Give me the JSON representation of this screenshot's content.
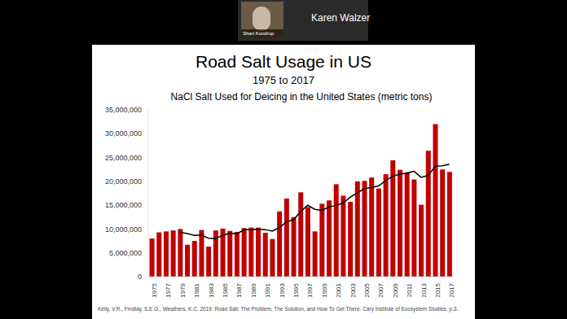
{
  "screen": {
    "participants": [
      "Shari Kondrup",
      "Karen Walzer"
    ]
  },
  "slide": {
    "title": "Road Salt Usage in US",
    "subtitle": "1975 to 2017",
    "source": "Kelly, V.R., Findlay, S.E.G., Weathers, K.C. 2019. Road Salt: The Problem, The Solution, and How To Get There. Cary Institute of Ecosystem Studies, p.3."
  },
  "chart_data": {
    "type": "bar",
    "title": "NaCl Salt Used for Deicing in the United States (metric tons)",
    "categories": [
      "1975",
      null,
      "1977",
      null,
      "1979",
      null,
      "1981",
      null,
      "1983",
      null,
      "1985",
      null,
      "1987",
      null,
      "1989",
      null,
      "1991",
      null,
      "1993",
      null,
      "1995",
      null,
      "1997",
      null,
      "1999",
      null,
      "2001",
      null,
      "2003",
      null,
      "2005",
      null,
      "2007",
      null,
      "2009",
      null,
      "2011",
      null,
      "2013",
      null,
      "2015",
      null,
      "2017"
    ],
    "series": [
      {
        "type": "bar",
        "color": "#c00000",
        "values": [
          8000000,
          9300000,
          9500000,
          9700000,
          10000000,
          6700000,
          7500000,
          9800000,
          6300000,
          9700000,
          10100000,
          9600000,
          9400000,
          10200000,
          10300000,
          10300000,
          9200000,
          7900000,
          13700000,
          16400000,
          12500000,
          17700000,
          14600000,
          9500000,
          15300000,
          16000000,
          19400000,
          17000000,
          15700000,
          20000000,
          20100000,
          20800000,
          18500000,
          21500000,
          24400000,
          22400000,
          21900000,
          20400000,
          15100000,
          26400000,
          32000000,
          22500000,
          22000000
        ]
      },
      {
        "type": "line",
        "color": "#000000",
        "values": [
          null,
          null,
          null,
          null,
          9300000,
          9040000,
          8680000,
          8740000,
          8060000,
          8000000,
          8680000,
          9100000,
          9020000,
          9800000,
          9920000,
          9960000,
          9880000,
          9580000,
          10280000,
          11500000,
          11940000,
          13640000,
          14980000,
          14140000,
          13920000,
          14620000,
          14960000,
          15440000,
          16680000,
          17620000,
          18440000,
          18720000,
          19020000,
          20180000,
          21060000,
          21520000,
          21740000,
          22120000,
          20840000,
          21240000,
          23160000,
          23280000,
          23600000
        ]
      }
    ],
    "ylim": [
      0,
      35000000
    ],
    "yticks": [
      0,
      {
        "value": 5000000,
        "label": "5,000,000"
      },
      {
        "value": 10000000,
        "label": "10,000,000"
      },
      {
        "value": 15000000,
        "label": "15,000,000"
      },
      {
        "value": 20000000,
        "label": "20,000,000"
      },
      {
        "value": 25000000,
        "label": "25,000,000"
      },
      {
        "value": 30000000,
        "label": "30,000,000"
      },
      {
        "value": 35000000,
        "label": "35,000,000"
      }
    ],
    "grid": false
  }
}
